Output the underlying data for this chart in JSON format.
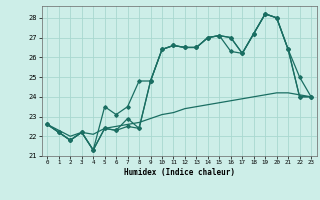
{
  "xlabel": "Humidex (Indice chaleur)",
  "bg_color": "#cdeee8",
  "grid_color": "#a8d8d0",
  "line_color": "#1a6e62",
  "xlim": [
    -0.5,
    23.5
  ],
  "ylim": [
    21.0,
    28.6
  ],
  "yticks": [
    21,
    22,
    23,
    24,
    25,
    26,
    27,
    28
  ],
  "xtick_labels": [
    "0",
    "1",
    "2",
    "3",
    "4",
    "5",
    "6",
    "7",
    "8",
    "9",
    "10",
    "11",
    "12",
    "13",
    "14",
    "15",
    "16",
    "17",
    "18",
    "19",
    "20",
    "21",
    "22",
    "23"
  ],
  "series": [
    [
      22.6,
      22.2,
      21.8,
      22.2,
      21.3,
      22.4,
      22.3,
      22.5,
      22.4,
      24.8,
      26.4,
      26.6,
      26.5,
      26.5,
      27.0,
      27.1,
      27.0,
      26.2,
      27.2,
      28.2,
      28.0,
      26.4,
      24.0,
      24.0
    ],
    [
      22.6,
      22.2,
      21.8,
      22.2,
      21.3,
      23.5,
      23.1,
      23.5,
      24.8,
      24.8,
      26.4,
      26.6,
      26.5,
      26.5,
      27.0,
      27.1,
      27.0,
      26.2,
      27.2,
      28.2,
      28.0,
      26.4,
      25.0,
      24.0
    ],
    [
      22.6,
      22.2,
      21.8,
      22.2,
      21.3,
      22.4,
      22.3,
      22.9,
      22.4,
      24.8,
      26.4,
      26.6,
      26.5,
      26.5,
      27.0,
      27.1,
      26.3,
      26.2,
      27.2,
      28.2,
      28.0,
      26.4,
      24.0,
      24.0
    ],
    [
      22.6,
      22.3,
      22.0,
      22.2,
      22.1,
      22.4,
      22.5,
      22.6,
      22.7,
      22.9,
      23.1,
      23.2,
      23.4,
      23.5,
      23.6,
      23.7,
      23.8,
      23.9,
      24.0,
      24.1,
      24.2,
      24.2,
      24.1,
      24.0
    ]
  ]
}
